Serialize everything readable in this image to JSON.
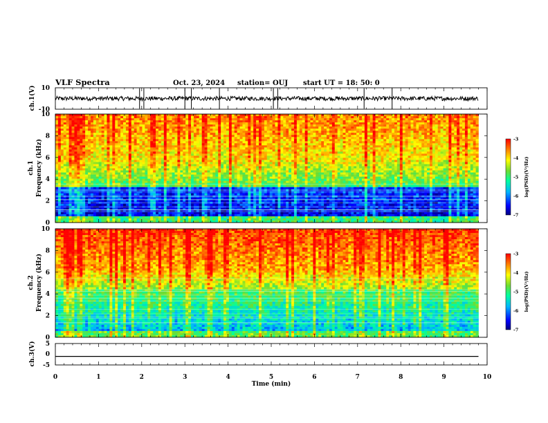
{
  "header": {
    "title": "VLF Spectra",
    "date": "Oct. 23, 2024",
    "station": "station= OUJ",
    "start": "start  UT =   18: 50: 0"
  },
  "chart_data": [
    {
      "type": "line",
      "name_label": "ch.1(V)",
      "ylabel": "ch.1(V)",
      "ylim": [
        -10,
        10
      ],
      "yticks": [
        "10",
        "-10"
      ],
      "xlim": [
        0,
        10
      ],
      "description_values": {
        "baseline": 0,
        "noise_amplitude": 2,
        "spikes_at_min": [
          1.95,
          2.05,
          3.0,
          3.15,
          3.8,
          5.05,
          5.15,
          7.15,
          7.8
        ]
      }
    },
    {
      "type": "heatmap",
      "ylabel_channel": "ch.1",
      "ylabel": "Frequency  (kHz)",
      "ylim": [
        0,
        10
      ],
      "yticks": [
        "0",
        "2",
        "4",
        "6",
        "8",
        "10"
      ],
      "xlim": [
        0,
        10
      ],
      "data_end_min": 9.8,
      "colorbar": {
        "label": "log(PSD)(V²/Hz)",
        "range": [
          -7,
          -3
        ],
        "ticks": [
          "-3",
          "-4",
          "-5",
          "-6",
          "-7"
        ]
      }
    },
    {
      "type": "heatmap",
      "ylabel_channel": "ch.2",
      "ylabel": "Frequency  (kHz)",
      "ylim": [
        0,
        10
      ],
      "yticks": [
        "0",
        "2",
        "4",
        "6",
        "8",
        "10"
      ],
      "xlim": [
        0,
        10
      ],
      "data_end_min": 9.8,
      "colorbar": {
        "label": "log(PSD)(V²/Hz)",
        "range": [
          -7,
          -3
        ],
        "ticks": [
          "-3",
          "-4",
          "-5",
          "-6",
          "-7"
        ]
      }
    },
    {
      "type": "line",
      "ylabel": "ch.3(V)",
      "ylim": [
        -5,
        5
      ],
      "yticks": [
        "5",
        "0",
        "-5"
      ],
      "xlim": [
        0,
        10
      ],
      "x": [
        0,
        9.8
      ],
      "y": [
        -1,
        -1
      ]
    }
  ],
  "xaxis": {
    "label": "Time  (min)",
    "ticks": [
      "0",
      "1",
      "2",
      "3",
      "4",
      "5",
      "6",
      "7",
      "8",
      "9",
      "10"
    ]
  }
}
